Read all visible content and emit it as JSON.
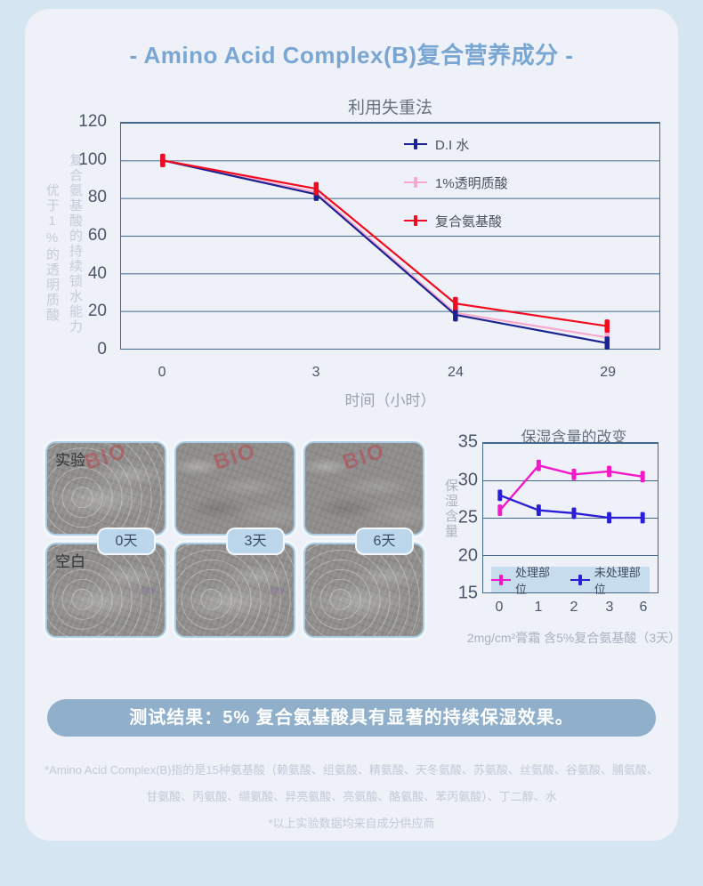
{
  "page": {
    "title": "- Amino Acid Complex(B)复合营养成分 -"
  },
  "chart_data": [
    {
      "type": "line",
      "title": "利用失重法",
      "ylabel_outer": "优于1%的透明质酸",
      "ylabel_inner": "复合氨基酸的持续锁水能力",
      "xlabel": "时间（小时）",
      "categories": [
        "0",
        "3",
        "24",
        "29"
      ],
      "yticks": [
        120,
        100,
        80,
        60,
        40,
        20,
        0
      ],
      "ylim": [
        0,
        120
      ],
      "grid": "horizontal",
      "legend_position": "top-right-inside",
      "series": [
        {
          "name": "D.I 水",
          "color": "#1b2390",
          "values": [
            100,
            82,
            18,
            3
          ]
        },
        {
          "name": "1%透明质酸",
          "color": "#f9a9cb",
          "values": [
            100,
            83,
            19,
            6
          ]
        },
        {
          "name": "复合氨基酸",
          "color": "#f30b1f",
          "values": [
            100,
            85,
            24,
            12
          ]
        }
      ]
    },
    {
      "type": "line",
      "title": "保湿含量的改变",
      "ylabel": "保湿含量",
      "caption": "2mg/cm²膏霜 含5%复合氨基酸（3天）",
      "categories": [
        "0",
        "1",
        "2",
        "3",
        "6"
      ],
      "yticks": [
        35,
        30,
        25,
        20,
        15
      ],
      "ylim": [
        15,
        35
      ],
      "grid": "horizontal",
      "legend_position": "bottom-inside",
      "series": [
        {
          "name": "处理部位",
          "color": "#f318c9",
          "values": [
            26,
            32,
            30.8,
            31.2,
            30.5
          ]
        },
        {
          "name": "未处理部位",
          "color": "#2a1fd6",
          "values": [
            28,
            26,
            25.6,
            25,
            25
          ]
        }
      ]
    }
  ],
  "images": {
    "row_labels": [
      "实验",
      "空白"
    ],
    "day_labels": [
      "0天",
      "3天",
      "6天"
    ],
    "watermark": "BIO"
  },
  "result_banner": "测试结果：5% 复合氨基酸具有显著的持续保湿效果。",
  "footnotes": [
    "*Amino Acid Complex(B)指的是15种氨基酸（赖氨酸、组氨酸、精氨酸、天冬氨酸、苏氨酸、丝氨酸、谷氨酸、脯氨酸、",
    "甘氨酸、丙氨酸、缬氨酸、异亮氨酸、亮氨酸、酪氨酸、苯丙氨酸）、丁二醇、水",
    "*以上实验数据均来自成分供应商"
  ],
  "colors": {
    "page_background": "#d5e5f2",
    "card_background": "#eef1f8",
    "title_accent": "#79a6d2",
    "chart_frame": "#44688c",
    "banner_background": "#8fafca",
    "badge_background": "#bcd7eb"
  }
}
